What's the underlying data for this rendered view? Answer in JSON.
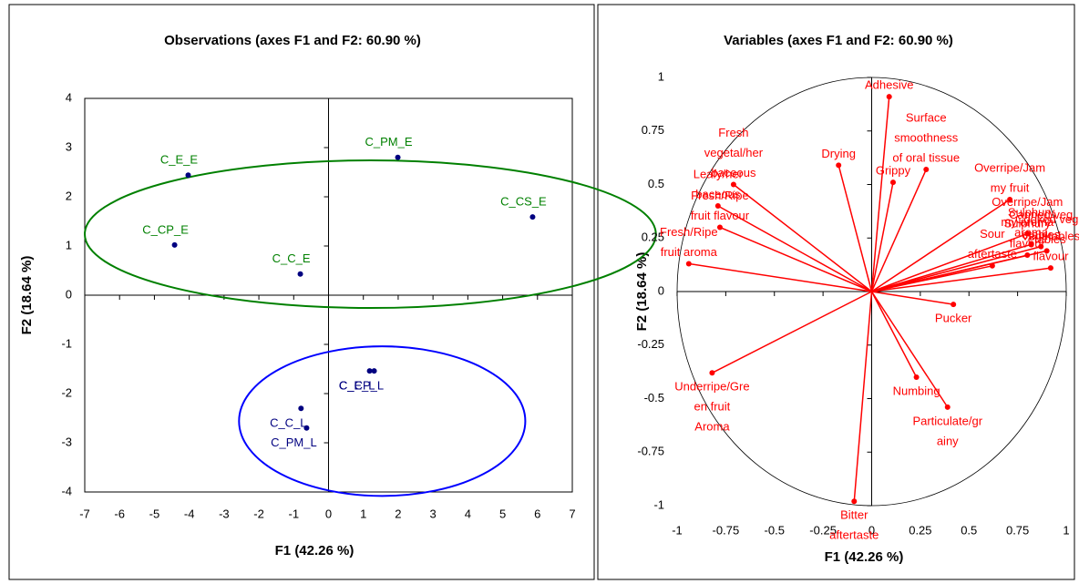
{
  "chart_data": [
    {
      "type": "scatter",
      "title": "Observations (axes F1 and F2: 60.90 %)",
      "x_label": "F1 (42.26 %)",
      "y_label": "F2 (18.64 %)",
      "xlim": [
        -7,
        7
      ],
      "ylim": [
        -4,
        4
      ],
      "xticks": [
        -7,
        -6,
        -5,
        -4,
        -3,
        -2,
        -1,
        0,
        1,
        2,
        3,
        4,
        5,
        6,
        7
      ],
      "yticks": [
        -4,
        -3,
        -2,
        -1,
        0,
        1,
        2,
        3,
        4
      ],
      "frame": true,
      "marker_color": "#000080",
      "points": [
        {
          "label": "C_E_E",
          "x": -4.03,
          "y": 2.44,
          "label_color": "#008000"
        },
        {
          "label": "C_PM_E",
          "x": 1.99,
          "y": 2.8,
          "label_color": "#008000"
        },
        {
          "label": "C_CS_E",
          "x": 5.86,
          "y": 1.59,
          "label_color": "#008000"
        },
        {
          "label": "C_CP_E",
          "x": -4.42,
          "y": 1.02,
          "label_color": "#008000"
        },
        {
          "label": "C_C_E",
          "x": -0.81,
          "y": 0.43,
          "label_color": "#008000"
        },
        {
          "label": "C_E_L",
          "x": 1.18,
          "y": -1.54,
          "label_color": "#000080"
        },
        {
          "label": "C_CP_L",
          "x": 1.31,
          "y": -1.54,
          "label_color": "#000080"
        },
        {
          "label": "C_C_L",
          "x": -0.79,
          "y": -2.3,
          "label_color": "#000080"
        },
        {
          "label": "C_PM_L",
          "x": -0.63,
          "y": -2.7,
          "label_color": "#000080"
        }
      ],
      "ellipses": [
        {
          "color": "#008000",
          "cx": 1.2,
          "cy": 1.24,
          "rx": 8.2,
          "ry": 1.5
        },
        {
          "color": "#0000ff",
          "cx": 1.54,
          "cy": -2.56,
          "rx": 4.11,
          "ry": 1.52
        }
      ]
    },
    {
      "type": "biplot",
      "title": "Variables (axes F1 and F2: 60.90 %)",
      "x_label": "F1 (42.26 %)",
      "y_label": "F2 (18.64 %)",
      "xlim": [
        -1,
        1
      ],
      "ylim": [
        -1,
        1
      ],
      "xticks": [
        -1,
        -0.75,
        -0.5,
        -0.25,
        0,
        0.25,
        0.5,
        0.75,
        1
      ],
      "yticks": [
        -1,
        -0.75,
        -0.5,
        -0.25,
        0,
        0.25,
        0.5,
        0.75,
        1
      ],
      "frame": false,
      "vector_color": "#ff0000",
      "circle_color": "#000000",
      "vectors": [
        {
          "label": [
            "Adhesive"
          ],
          "x": 0.09,
          "y": 0.91
        },
        {
          "label": [
            "Drying"
          ],
          "x": -0.17,
          "y": 0.59
        },
        {
          "label": [
            "Grippy"
          ],
          "x": 0.11,
          "y": 0.51
        },
        {
          "label": [
            "Surface",
            "smoothness",
            "of oral tissue"
          ],
          "x": 0.28,
          "y": 0.57
        },
        {
          "label": [
            "Overripe/Jam",
            "my fruit"
          ],
          "x": 0.71,
          "y": 0.43
        },
        {
          "label": [
            "Overripe/Jam",
            "my aroma"
          ],
          "x": 0.8,
          "y": 0.27
        },
        {
          "label": [
            "Sulphury",
            "aroma"
          ],
          "x": 0.82,
          "y": 0.22
        },
        {
          "label": [
            "Canned veg",
            "etables"
          ],
          "x": 0.87,
          "y": 0.21
        },
        {
          "label": [
            "Cooked veg",
            "etables"
          ],
          "x": 0.9,
          "y": 0.19
        },
        {
          "label": [
            "Sulphury",
            "flavour"
          ],
          "x": 0.8,
          "y": 0.17
        },
        {
          "label": [
            "Sour",
            "aftertaste"
          ],
          "x": 0.62,
          "y": 0.12
        },
        {
          "label": [
            "Vegetables",
            "flavour"
          ],
          "x": 0.92,
          "y": 0.11
        },
        {
          "label": [
            "Pucker"
          ],
          "x": 0.42,
          "y": -0.06
        },
        {
          "label": [
            "Numbing"
          ],
          "x": 0.23,
          "y": -0.4
        },
        {
          "label": [
            "Particulate/gr",
            "ainy"
          ],
          "x": 0.39,
          "y": -0.54
        },
        {
          "label": [
            "Bitter",
            "aftertaste"
          ],
          "x": -0.09,
          "y": -0.98
        },
        {
          "label": [
            "Underripe/Gre",
            "en fruit",
            "Aroma"
          ],
          "x": -0.82,
          "y": -0.38
        },
        {
          "label": [
            "Fresh",
            "vegetal/her",
            "baceous"
          ],
          "x": -0.71,
          "y": 0.5
        },
        {
          "label": [
            "Leafy/her",
            "baceous"
          ],
          "x": -0.79,
          "y": 0.4
        },
        {
          "label": [
            "Fresh/Ripe",
            "fruit flavour"
          ],
          "x": -0.78,
          "y": 0.3
        },
        {
          "label": [
            "Fresh/Ripe",
            "fruit aroma"
          ],
          "x": -0.94,
          "y": 0.13
        }
      ]
    }
  ]
}
